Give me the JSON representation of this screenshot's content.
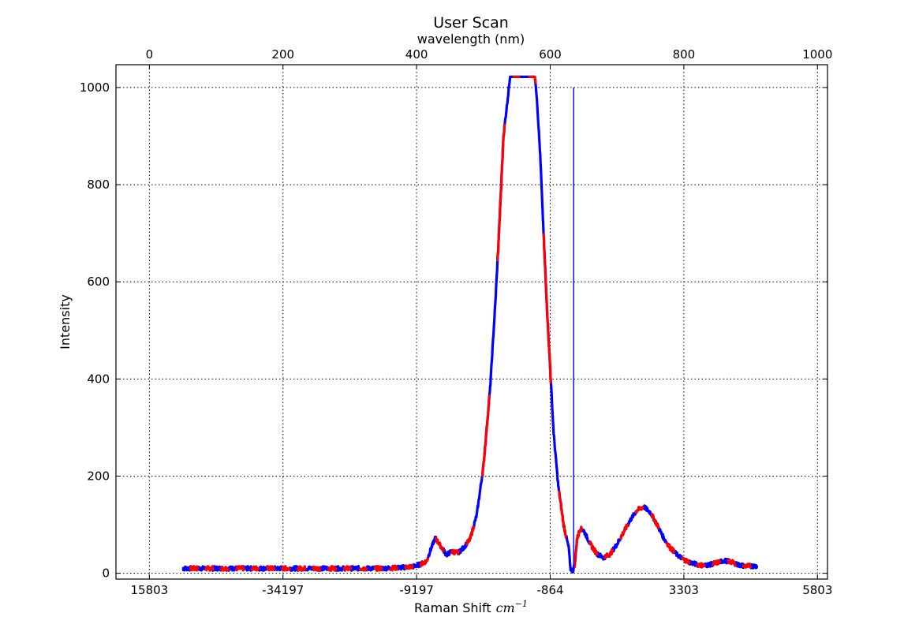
{
  "chart_data": {
    "type": "line",
    "title": "User Scan",
    "top_xlabel": "wavelength (nm)",
    "xlabel": "Raman Shift",
    "xlabel_math": "cm",
    "xlabel_math_exp": "−1",
    "ylabel": "Intensity",
    "xlim": [
      -50,
      1015
    ],
    "ylim": [
      -12,
      1047
    ],
    "grid": true,
    "grid_style": "dotted",
    "top_axis_ticks": [
      {
        "value": 0,
        "label": "0"
      },
      {
        "value": 200,
        "label": "200"
      },
      {
        "value": 400,
        "label": "400"
      },
      {
        "value": 600,
        "label": "600"
      },
      {
        "value": 800,
        "label": "800"
      },
      {
        "value": 1000,
        "label": "1000"
      }
    ],
    "bottom_axis_ticks": [
      {
        "value": 0,
        "label": "15803"
      },
      {
        "value": 200,
        "label": "-34197"
      },
      {
        "value": 400,
        "label": "-9197"
      },
      {
        "value": 600,
        "label": "-864"
      },
      {
        "value": 800,
        "label": "3303"
      },
      {
        "value": 1000,
        "label": "5803"
      }
    ],
    "y_ticks": [
      {
        "value": 0,
        "label": "0"
      },
      {
        "value": 200,
        "label": "200"
      },
      {
        "value": 400,
        "label": "400"
      },
      {
        "value": 600,
        "label": "600"
      },
      {
        "value": 800,
        "label": "800"
      },
      {
        "value": 1000,
        "label": "1000"
      }
    ],
    "colors": {
      "series_a": "#0000ff",
      "series_b": "#ff0000",
      "frame": "#000000",
      "grid": "#000000"
    },
    "series": [
      {
        "color": "#0000ff",
        "x": [
          50,
          100,
          150,
          200,
          250,
          300,
          350,
          380,
          395,
          405,
          415,
          420,
          428,
          435,
          445,
          452,
          462,
          470,
          480,
          490,
          500,
          510,
          518,
          524,
          530,
          540,
          560,
          577,
          580,
          585,
          590,
          595,
          600,
          605,
          612,
          620,
          628,
          630,
          634,
          637,
          640,
          645,
          650,
          660,
          670,
          680,
          690,
          700,
          710,
          720,
          730,
          740,
          750,
          760,
          770,
          780,
          790,
          800,
          810,
          820,
          830,
          840,
          850,
          860,
          870,
          880,
          890,
          900,
          910
        ],
        "y": [
          10,
          10,
          10,
          10,
          10,
          10,
          10,
          12,
          14,
          18,
          25,
          45,
          73,
          58,
          38,
          45,
          42,
          52,
          70,
          120,
          220,
          380,
          560,
          720,
          900,
          1022,
          1022,
          1022,
          980,
          860,
          700,
          550,
          420,
          290,
          180,
          100,
          50,
          10,
          5,
          20,
          70,
          92,
          88,
          60,
          40,
          32,
          40,
          60,
          85,
          110,
          130,
          137,
          125,
          100,
          72,
          52,
          38,
          28,
          22,
          18,
          16,
          18,
          22,
          26,
          24,
          18,
          15,
          15,
          15
        ]
      },
      {
        "color": "#0000ff",
        "x": [
          635,
          635,
          635
        ],
        "y": [
          10,
          1000,
          10
        ]
      }
    ]
  }
}
